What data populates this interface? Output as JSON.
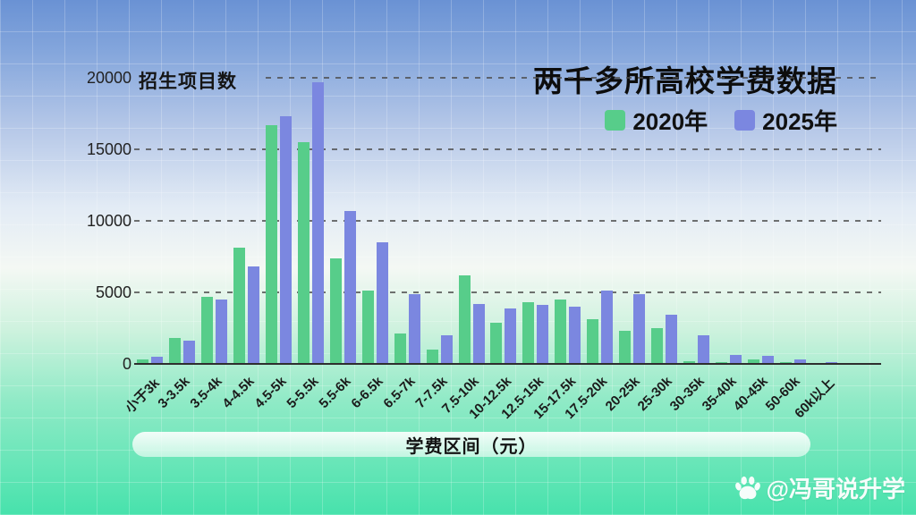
{
  "title": "两千多所高校学费数据",
  "legend": {
    "items": [
      {
        "label": "2020年",
        "color": "#57cd8a"
      },
      {
        "label": "2025年",
        "color": "#7b87e0"
      }
    ]
  },
  "y_axis": {
    "unit_label": "招生项目数",
    "ticks": [
      0,
      5000,
      10000,
      15000,
      20000
    ],
    "max": 20000
  },
  "x_axis": {
    "title": "学费区间（元）"
  },
  "watermark": {
    "icon": "paw-icon",
    "text": "@冯哥说升学"
  },
  "colors": {
    "bar_2020": "#57cd8a",
    "bar_2025": "#7b87e0",
    "background_top": "#6a92d4",
    "background_bottom": "#47e2ac",
    "gridline": "#4b4b4b"
  },
  "chart_data": {
    "type": "bar",
    "title": "两千多所高校学费数据",
    "xlabel": "学费区间（元）",
    "ylabel": "招生项目数",
    "ylim": [
      0,
      20000
    ],
    "yticks": [
      0,
      5000,
      10000,
      15000,
      20000
    ],
    "grid": "horizontal-dashed",
    "legend_position": "top-right",
    "categories": [
      "小于3k",
      "3-3.5k",
      "3.5-4k",
      "4-4.5k",
      "4.5-5k",
      "5-5.5k",
      "5.5-6k",
      "6-6.5k",
      "6.5-7k",
      "7-7.5k",
      "7.5-10k",
      "10-12.5k",
      "12.5-15k",
      "15-17.5k",
      "17.5-20k",
      "20-25k",
      "25-30k",
      "30-35k",
      "35-40k",
      "40-45k",
      "50-60k",
      "60k以上"
    ],
    "series": [
      {
        "name": "2020年",
        "color": "#57cd8a",
        "values": [
          300,
          1800,
          4700,
          8100,
          16700,
          15500,
          7400,
          5100,
          2100,
          1000,
          6200,
          2900,
          4300,
          4500,
          3100,
          2300,
          2500,
          200,
          150,
          300,
          100,
          80
        ]
      },
      {
        "name": "2025年",
        "color": "#7b87e0",
        "values": [
          500,
          1600,
          4500,
          6800,
          17300,
          19700,
          10700,
          8500,
          4900,
          2000,
          4200,
          3900,
          4100,
          4000,
          5100,
          4900,
          3450,
          2000,
          650,
          550,
          300,
          150
        ]
      }
    ]
  }
}
